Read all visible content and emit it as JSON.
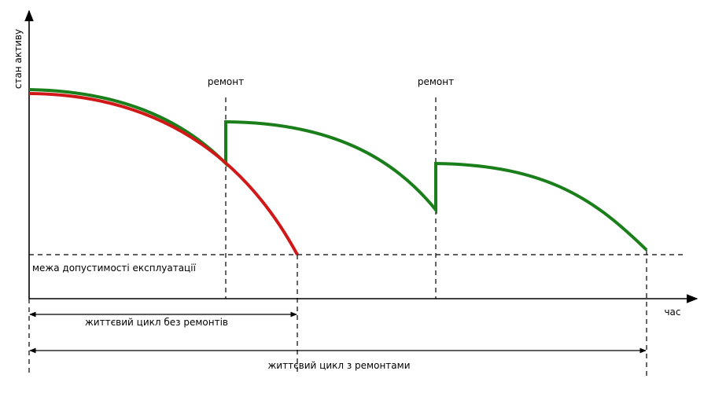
{
  "axes": {
    "y_label": "стан активу",
    "x_label": "час"
  },
  "threshold": {
    "label": "межа допустимості експлуатації"
  },
  "repairs": [
    {
      "label": "ремонт"
    },
    {
      "label": "ремонт"
    }
  ],
  "spans": {
    "without_repairs": "життєвий цикл без ремонтів",
    "with_repairs": "життєвий цикл з ремонтами"
  },
  "colors": {
    "with_repairs_curve": "#1a7f1a",
    "without_repairs_curve": "#d01818",
    "axis": "#000000"
  }
}
